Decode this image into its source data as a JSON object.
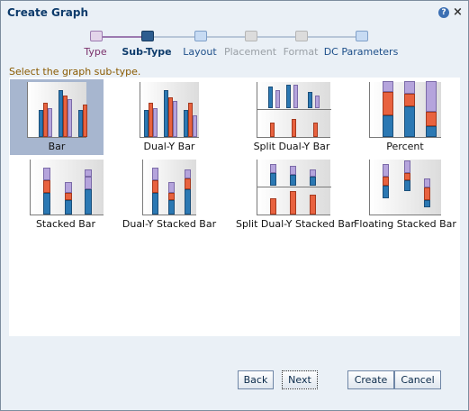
{
  "dialog": {
    "title": "Create Graph"
  },
  "train": {
    "stops": [
      {
        "label": "Type",
        "state": "visited"
      },
      {
        "label": "Sub-Type",
        "state": "current"
      },
      {
        "label": "Layout",
        "state": "next"
      },
      {
        "label": "Placement",
        "state": "disabled"
      },
      {
        "label": "Format",
        "state": "disabled"
      },
      {
        "label": "DC Parameters",
        "state": "next"
      }
    ]
  },
  "instructions": "Select the graph sub-type.",
  "subtypes": [
    {
      "label": "Bar",
      "selected": true
    },
    {
      "label": "Dual-Y Bar"
    },
    {
      "label": "Split Dual-Y Bar"
    },
    {
      "label": "Percent"
    },
    {
      "label": "Stacked Bar"
    },
    {
      "label": "Dual-Y Stacked Bar"
    },
    {
      "label": "Split Dual-Y Stacked Bar"
    },
    {
      "label": "Floating Stacked Bar"
    }
  ],
  "buttons": {
    "back": "Back",
    "next": "Next",
    "create": "Create",
    "cancel": "Cancel"
  },
  "colors": {
    "blue_bar": "#2b78b3",
    "red_bar": "#e8623f",
    "purple_bar": "#b5a4dc",
    "current_step": "#2d5d8f"
  }
}
